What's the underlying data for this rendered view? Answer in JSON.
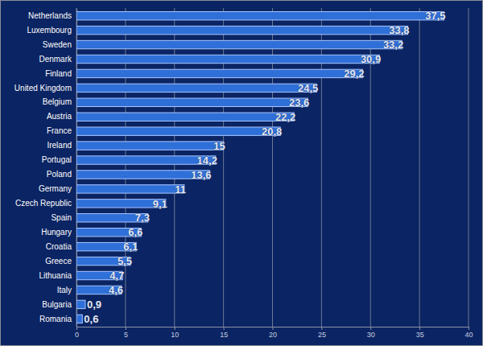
{
  "chart_data": {
    "type": "bar",
    "orientation": "horizontal",
    "categories": [
      "Netherlands",
      "Luxembourg",
      "Sweden",
      "Denmark",
      "Finland",
      "United Kingdom",
      "Belgium",
      "Austria",
      "France",
      "Ireland",
      "Portugal",
      "Poland",
      "Germany",
      "Czech Republic",
      "Spain",
      "Hungary",
      "Croatia",
      "Greece",
      "Lithuania",
      "Italy",
      "Bulgaria",
      "Romania"
    ],
    "values": [
      37.5,
      33.8,
      33.2,
      30.9,
      29.2,
      24.5,
      23.6,
      22.2,
      20.8,
      15,
      14.2,
      13.6,
      11,
      9.1,
      7.3,
      6.6,
      6.1,
      5.5,
      4.7,
      4.6,
      0.9,
      0.6
    ],
    "value_labels": [
      "37,5",
      "33,8",
      "33,2",
      "30,9",
      "29,2",
      "24,5",
      "23,6",
      "22,2",
      "20,8",
      "15",
      "14,2",
      "13,6",
      "11",
      "9,1",
      "7,3",
      "6,6",
      "6,1",
      "5,5",
      "4,7",
      "4,6",
      "0,9",
      "0,6"
    ],
    "color": "#2f6fd8",
    "xlim": [
      0,
      40
    ],
    "xticks": [
      0,
      5,
      10,
      15,
      20,
      25,
      30,
      35,
      40
    ],
    "grid": true,
    "data_labels": true
  }
}
